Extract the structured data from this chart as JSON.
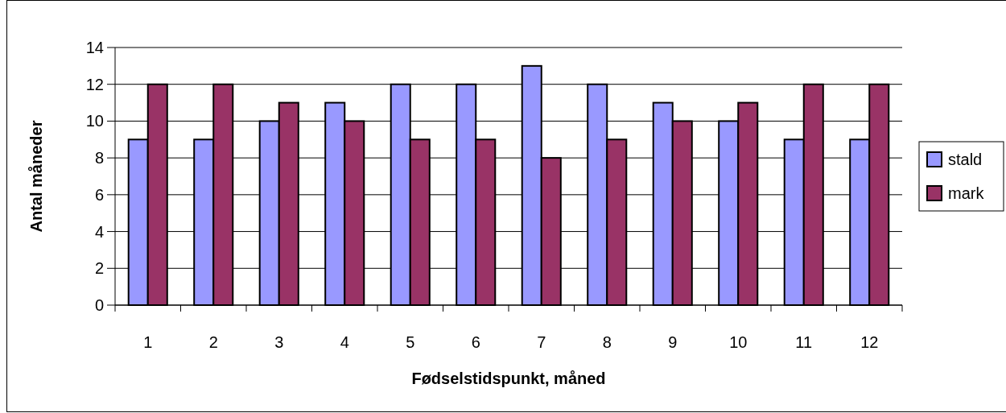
{
  "chart_data": {
    "type": "bar",
    "xlabel": "Fødselstidspunkt, måned",
    "ylabel": "Antal måneder",
    "categories": [
      "1",
      "2",
      "3",
      "4",
      "5",
      "6",
      "7",
      "8",
      "9",
      "10",
      "11",
      "12"
    ],
    "series": [
      {
        "name": "stald",
        "color": "#9999ff",
        "values": [
          9,
          9,
          10,
          11,
          12,
          12,
          13,
          12,
          11,
          10,
          9,
          9
        ]
      },
      {
        "name": "mark",
        "color": "#993366",
        "values": [
          12,
          12,
          11,
          10,
          9,
          9,
          8,
          9,
          10,
          11,
          12,
          12
        ]
      }
    ],
    "ylim": [
      0,
      14
    ],
    "yticks": [
      0,
      2,
      4,
      6,
      8,
      10,
      12,
      14
    ],
    "grid": "y",
    "legend": "right"
  }
}
